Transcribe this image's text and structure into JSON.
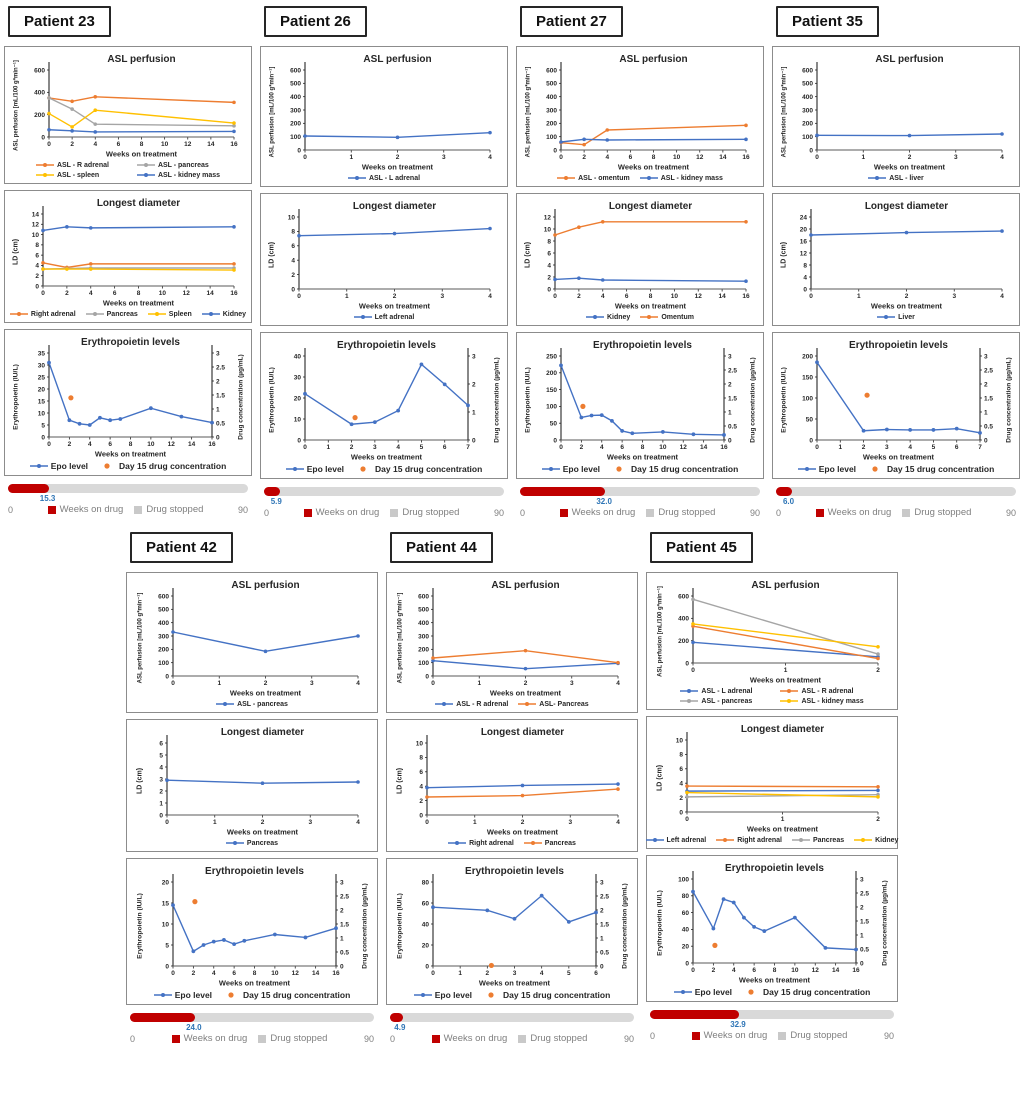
{
  "shared": {
    "xlabel": "Weeks on treatment",
    "asl": {
      "title": "ASL perfusion",
      "ylabel": "ASL perfusion [mL/100 g*min⁻¹]"
    },
    "ld": {
      "title": "Longest diameter",
      "ylabel": "LD (cm)"
    },
    "epo": {
      "title": "Erythropoietin levels",
      "ylabel": "Erythropoietin (IU/L)",
      "y2label": "Drug concentration (µg/mL)",
      "series1": "Epo level",
      "series2": "Day 15 drug concentration"
    },
    "bar": {
      "min": "0",
      "max": "90",
      "legend1": "Weeks on drug",
      "legend2": "Drug stopped",
      "scale_max": 90
    },
    "colors": {
      "blue": "#4472C4",
      "orange": "#ED7D31",
      "gray": "#A5A5A5",
      "yellow": "#FFC000",
      "red": "#C00000",
      "track": "#D9D9D9",
      "stopped": "#C9C9C9",
      "value": "#2E75B6"
    }
  },
  "chart_data": [
    {
      "patient": "Patient 23",
      "row": 1,
      "asl": {
        "type": "line",
        "x": [
          0,
          2,
          4,
          16
        ],
        "xticks": [
          0,
          2,
          4,
          6,
          8,
          10,
          12,
          14,
          16
        ],
        "ylim": [
          0,
          600
        ],
        "ystep": 200,
        "legend_cols": 2,
        "series": [
          {
            "name": "ASL - R adrenal",
            "color": "orange",
            "values": [
              350,
              320,
              360,
              310
            ]
          },
          {
            "name": "ASL - pancreas",
            "color": "gray",
            "values": [
              350,
              250,
              115,
              100
            ]
          },
          {
            "name": "ASL - spleen",
            "color": "yellow",
            "values": [
              210,
              90,
              240,
              125
            ]
          },
          {
            "name": "ASL - kidney mass",
            "color": "blue",
            "values": [
              65,
              55,
              45,
              50
            ]
          }
        ]
      },
      "ld": {
        "type": "line",
        "x": [
          0,
          2,
          4,
          16
        ],
        "xticks": [
          0,
          2,
          4,
          6,
          8,
          10,
          12,
          14,
          16
        ],
        "ylim": [
          0,
          14
        ],
        "ystep": 2,
        "legend_cols": 4,
        "series": [
          {
            "name": "Right adrenal",
            "color": "orange",
            "values": [
              4.5,
              3.6,
              4.3,
              4.3
            ]
          },
          {
            "name": "Pancreas",
            "color": "gray",
            "values": [
              3.3,
              3.4,
              3.5,
              3.5
            ]
          },
          {
            "name": "Spleen",
            "color": "yellow",
            "values": [
              3.3,
              3.3,
              3.3,
              3.1
            ]
          },
          {
            "name": "Kidney",
            "color": "blue",
            "values": [
              10.8,
              11.5,
              11.3,
              11.5
            ]
          }
        ]
      },
      "epo": {
        "type": "line+scatter",
        "x": [
          0,
          2,
          3,
          4,
          5,
          6,
          7,
          10,
          13,
          16
        ],
        "xticks": [
          0,
          2,
          4,
          6,
          8,
          10,
          12,
          14,
          16
        ],
        "ylim": [
          0,
          35
        ],
        "ystep": 5,
        "values": [
          31,
          7,
          5.5,
          5,
          8,
          7,
          7.5,
          12,
          8.5,
          6
        ],
        "y2lim": [
          0,
          3
        ],
        "y2step": 0.5,
        "drug_point": {
          "x": 2.15,
          "y2": 1.4
        }
      },
      "bar": {
        "weeks_on_drug": 15.3,
        "label": "15.3"
      }
    },
    {
      "patient": "Patient 26",
      "row": 1,
      "asl": {
        "type": "line",
        "x": [
          0,
          2,
          4
        ],
        "xticks": [
          0,
          1,
          2,
          3,
          4
        ],
        "ylim": [
          0,
          600
        ],
        "ystep": 100,
        "legend_cols": 1,
        "series": [
          {
            "name": "ASL - L adrenal",
            "color": "blue",
            "values": [
              105,
              95,
              130
            ]
          }
        ]
      },
      "ld": {
        "type": "line",
        "x": [
          0,
          2,
          4
        ],
        "xticks": [
          0,
          1,
          2,
          3,
          4
        ],
        "ylim": [
          0,
          10
        ],
        "ystep": 2,
        "legend_cols": 1,
        "series": [
          {
            "name": "Left adrenal",
            "color": "blue",
            "values": [
              7.4,
              7.7,
              8.4
            ]
          }
        ]
      },
      "epo": {
        "type": "line+scatter",
        "x": [
          0,
          2,
          3,
          4,
          5,
          6,
          7
        ],
        "xticks": [
          0,
          1,
          2,
          3,
          4,
          5,
          6,
          7
        ],
        "ylim": [
          0,
          40
        ],
        "ystep": 10,
        "values": [
          22,
          7.5,
          8.5,
          14,
          36,
          26.5,
          16.5
        ],
        "y2lim": [
          0,
          3
        ],
        "y2step": 1,
        "drug_point": {
          "x": 2.15,
          "y2": 0.8
        }
      },
      "bar": {
        "weeks_on_drug": 5.9,
        "label": "5.9"
      }
    },
    {
      "patient": "Patient 27",
      "row": 1,
      "asl": {
        "type": "line",
        "x": [
          0,
          2,
          4,
          16
        ],
        "xticks": [
          0,
          2,
          4,
          6,
          8,
          10,
          12,
          14,
          16
        ],
        "ylim": [
          0,
          600
        ],
        "ystep": 100,
        "legend_cols": 2,
        "series": [
          {
            "name": "ASL - omentum",
            "color": "orange",
            "values": [
              55,
              40,
              150,
              185
            ]
          },
          {
            "name": "ASL - kidney mass",
            "color": "blue",
            "values": [
              60,
              80,
              75,
              80
            ]
          }
        ]
      },
      "ld": {
        "type": "line",
        "x": [
          0,
          2,
          4,
          16
        ],
        "xticks": [
          0,
          2,
          4,
          6,
          8,
          10,
          12,
          14,
          16
        ],
        "ylim": [
          0,
          12
        ],
        "ystep": 2,
        "legend_cols": 2,
        "series": [
          {
            "name": "Kidney",
            "color": "blue",
            "values": [
              1.6,
              1.8,
              1.5,
              1.3
            ]
          },
          {
            "name": "Omentum",
            "color": "orange",
            "values": [
              9,
              10.3,
              11.2,
              11.2
            ]
          }
        ]
      },
      "epo": {
        "type": "line+scatter",
        "x": [
          0,
          2,
          3,
          4,
          5,
          6,
          7,
          10,
          13,
          16
        ],
        "xticks": [
          0,
          2,
          4,
          6,
          8,
          10,
          12,
          14,
          16
        ],
        "ylim": [
          0,
          250
        ],
        "ystep": 50,
        "values": [
          222,
          67,
          73,
          74,
          57,
          27,
          20,
          24,
          17,
          15
        ],
        "y2lim": [
          0,
          3
        ],
        "y2step": 0.5,
        "drug_point": {
          "x": 2.15,
          "y2": 1.2
        }
      },
      "bar": {
        "weeks_on_drug": 32.0,
        "label": "32.0"
      }
    },
    {
      "patient": "Patient 35",
      "row": 1,
      "asl": {
        "type": "line",
        "x": [
          0,
          2,
          4
        ],
        "xticks": [
          0,
          1,
          2,
          3,
          4
        ],
        "ylim": [
          0,
          600
        ],
        "ystep": 100,
        "legend_cols": 1,
        "series": [
          {
            "name": "ASL - liver",
            "color": "blue",
            "values": [
              110,
              108,
              120
            ]
          }
        ]
      },
      "ld": {
        "type": "line",
        "x": [
          0,
          2,
          4
        ],
        "xticks": [
          0,
          1,
          2,
          3,
          4
        ],
        "ylim": [
          0,
          24
        ],
        "ystep": 4,
        "legend_cols": 1,
        "series": [
          {
            "name": "Liver",
            "color": "blue",
            "values": [
              18,
              18.8,
              19.3
            ]
          }
        ]
      },
      "epo": {
        "type": "line+scatter",
        "x": [
          0,
          2,
          3,
          4,
          5,
          6,
          7
        ],
        "xticks": [
          0,
          1,
          2,
          3,
          4,
          5,
          6,
          7
        ],
        "ylim": [
          0,
          200
        ],
        "ystep": 50,
        "values": [
          185,
          22,
          25,
          24,
          24,
          27,
          17
        ],
        "y2lim": [
          0,
          3
        ],
        "y2step": 0.5,
        "drug_point": {
          "x": 2.15,
          "y2": 1.6
        }
      },
      "bar": {
        "weeks_on_drug": 6.0,
        "label": "6.0"
      }
    },
    {
      "patient": "Patient 42",
      "row": 2,
      "asl": {
        "type": "line",
        "x": [
          0,
          2,
          4
        ],
        "xticks": [
          0,
          1,
          2,
          3,
          4
        ],
        "ylim": [
          0,
          600
        ],
        "ystep": 100,
        "legend_cols": 1,
        "series": [
          {
            "name": "ASL - pancreas",
            "color": "blue",
            "values": [
              330,
              185,
              300
            ]
          }
        ]
      },
      "ld": {
        "type": "line",
        "x": [
          0,
          2,
          4
        ],
        "xticks": [
          0,
          1,
          2,
          3,
          4
        ],
        "ylim": [
          0,
          6
        ],
        "ystep": 1,
        "legend_cols": 1,
        "series": [
          {
            "name": "Pancreas",
            "color": "blue",
            "values": [
              2.9,
              2.65,
              2.75
            ]
          }
        ]
      },
      "epo": {
        "type": "line+scatter",
        "x": [
          0,
          2,
          3,
          4,
          5,
          6,
          7,
          10,
          13,
          16
        ],
        "xticks": [
          0,
          2,
          4,
          6,
          8,
          10,
          12,
          14,
          16
        ],
        "ylim": [
          0,
          20
        ],
        "ystep": 5,
        "values": [
          14.5,
          3.5,
          5,
          5.8,
          6.2,
          5.2,
          6,
          7.5,
          6.8,
          9
        ],
        "y2lim": [
          0,
          3
        ],
        "y2step": 0.5,
        "drug_point": {
          "x": 2.15,
          "y2": 2.3
        }
      },
      "bar": {
        "weeks_on_drug": 24.0,
        "label": "24.0"
      }
    },
    {
      "patient": "Patient 44",
      "row": 2,
      "asl": {
        "type": "line",
        "x": [
          0,
          2,
          4
        ],
        "xticks": [
          0,
          1,
          2,
          3,
          4
        ],
        "ylim": [
          0,
          600
        ],
        "ystep": 100,
        "legend_cols": 2,
        "series": [
          {
            "name": "ASL - R adrenal",
            "color": "blue",
            "values": [
              115,
              55,
              95
            ]
          },
          {
            "name": "ASL- Pancreas",
            "color": "orange",
            "values": [
              135,
              190,
              100
            ]
          }
        ]
      },
      "ld": {
        "type": "line",
        "x": [
          0,
          2,
          4
        ],
        "xticks": [
          0,
          1,
          2,
          3,
          4
        ],
        "ylim": [
          0,
          10
        ],
        "ystep": 2,
        "legend_cols": 2,
        "series": [
          {
            "name": "Right adrenal",
            "color": "blue",
            "values": [
              3.8,
              4.1,
              4.3
            ]
          },
          {
            "name": "Pancreas",
            "color": "orange",
            "values": [
              2.5,
              2.7,
              3.6
            ]
          }
        ]
      },
      "epo": {
        "type": "line+scatter",
        "x": [
          0,
          2,
          3,
          4,
          5,
          6
        ],
        "xticks": [
          0,
          1,
          2,
          3,
          4,
          5,
          6
        ],
        "ylim": [
          0,
          80
        ],
        "ystep": 20,
        "values": [
          56,
          53,
          45,
          67,
          42,
          51
        ],
        "y2lim": [
          0,
          3
        ],
        "y2step": 0.5,
        "drug_point": {
          "x": 2.15,
          "y2": 0.02
        }
      },
      "bar": {
        "weeks_on_drug": 4.9,
        "label": "4.9"
      }
    },
    {
      "patient": "Patient 45",
      "row": 2,
      "asl": {
        "type": "line",
        "x": [
          0,
          2
        ],
        "xticks": [
          0,
          1,
          2
        ],
        "ylim": [
          0,
          600
        ],
        "ystep": 200,
        "legend_cols": 2,
        "series": [
          {
            "name": "ASL - L adrenal",
            "color": "blue",
            "values": [
              185,
              55
            ]
          },
          {
            "name": "ASL - R adrenal",
            "color": "orange",
            "values": [
              330,
              40
            ]
          },
          {
            "name": "ASL - pancreas",
            "color": "gray",
            "values": [
              570,
              80
            ]
          },
          {
            "name": "ASL - kidney mass",
            "color": "yellow",
            "values": [
              350,
              145
            ]
          }
        ]
      },
      "ld": {
        "type": "line",
        "x": [
          0,
          2
        ],
        "xticks": [
          0,
          1,
          2
        ],
        "ylim": [
          0,
          10
        ],
        "ystep": 2,
        "legend_cols": 4,
        "series": [
          {
            "name": "Left adrenal",
            "color": "blue",
            "values": [
              2.9,
              3.0
            ]
          },
          {
            "name": "Right adrenal",
            "color": "orange",
            "values": [
              3.6,
              3.5
            ]
          },
          {
            "name": "Pancreas",
            "color": "gray",
            "values": [
              2.1,
              2.4
            ]
          },
          {
            "name": "Kidney",
            "color": "yellow",
            "values": [
              2.7,
              2.1
            ]
          }
        ]
      },
      "epo": {
        "type": "line+scatter",
        "x": [
          0,
          2,
          3,
          4,
          5,
          6,
          7,
          10,
          13,
          16
        ],
        "xticks": [
          0,
          2,
          4,
          6,
          8,
          10,
          12,
          14,
          16
        ],
        "ylim": [
          0,
          100
        ],
        "ystep": 20,
        "values": [
          85,
          41,
          76,
          72,
          54,
          43,
          38,
          54,
          18,
          16
        ],
        "y2lim": [
          0,
          3
        ],
        "y2step": 0.5,
        "drug_point": {
          "x": 2.15,
          "y2": 0.63
        }
      },
      "bar": {
        "weeks_on_drug": 32.9,
        "label": "32.9"
      }
    }
  ]
}
